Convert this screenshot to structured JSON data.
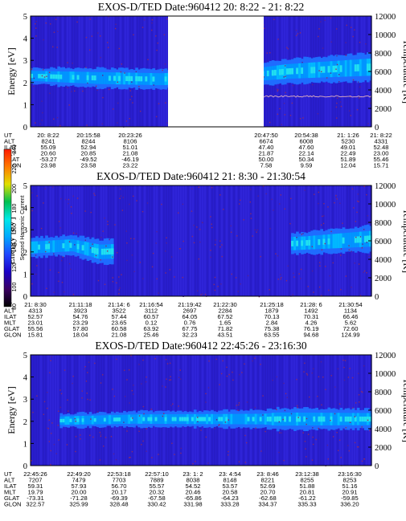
{
  "chart_data": [
    {
      "type": "heatmap",
      "title": "EXOS-D/TED   Date:960412  20: 8:22 - 21: 8:22",
      "ylabel": "Energy [eV]",
      "y2label": "Temperature [K]",
      "ylim": [
        0,
        5
      ],
      "y2lim": [
        0,
        12000
      ],
      "yticks": [
        "0",
        "1",
        "2",
        "3",
        "4",
        "5"
      ],
      "y2ticks": [
        "0",
        "2000",
        "4000",
        "6000",
        "8000",
        "10000",
        "12000"
      ],
      "data_gap": true,
      "band": [
        {
          "x": 0.0,
          "center": 2.3,
          "halfwidth": 0.38
        },
        {
          "x": 0.2,
          "center": 2.2,
          "halfwidth": 0.45
        },
        {
          "x": 0.38,
          "center": 2.15,
          "halfwidth": 0.45
        },
        {
          "x": 0.62,
          "center": 2.3,
          "halfwidth": 0.45
        },
        {
          "x": 0.75,
          "center": 2.5,
          "halfwidth": 0.55
        },
        {
          "x": 1.0,
          "center": 2.7,
          "halfwidth": 0.65
        }
      ],
      "temperature_trace_K": 3300,
      "table": {
        "labels": [
          "UT",
          "ALT",
          "ILAT",
          "MLT",
          "GLAT",
          "GLON"
        ],
        "columns": [
          [
            "20: 8:22",
            "8241",
            "55.09",
            "20.60",
            "-53.27",
            "23.98"
          ],
          [
            "20:15:58",
            "8244",
            "52.94",
            "20.85",
            "-49.52",
            "23.58"
          ],
          [
            "20:23:26",
            "8106",
            "51.01",
            "21.08",
            "-46.19",
            "23.22"
          ],
          [
            "20:47:50",
            "6674",
            "47.40",
            "21.87",
            "50.00",
            "7.58"
          ],
          [
            "20:54:38",
            "6008",
            "47.60",
            "22.14",
            "50.34",
            "9.59"
          ],
          [
            "21: 1:26",
            "5230",
            "49.01",
            "22.49",
            "51.89",
            "12.04"
          ],
          [
            "21: 8:22",
            "4331",
            "52.48",
            "23.00",
            "55.46",
            "15.71"
          ]
        ]
      }
    },
    {
      "type": "heatmap",
      "title": "EXOS-D/TED   Date:960412  21: 8:30 - 21:30:54",
      "ylabel": "Energy [eV]",
      "y2label": "Temperature [K]",
      "ylim": [
        0,
        5
      ],
      "y2lim": [
        0,
        12000
      ],
      "yticks": [
        "0",
        "1",
        "2",
        "3",
        "4",
        "5"
      ],
      "y2ticks": [
        "0",
        "2000",
        "4000",
        "6000",
        "8000",
        "10000",
        "12000"
      ],
      "band": [
        {
          "x": 0.0,
          "center": 2.2,
          "halfwidth": 0.45
        },
        {
          "x": 0.12,
          "center": 2.3,
          "halfwidth": 0.45
        },
        {
          "x": 0.2,
          "center": 2.0,
          "halfwidth": 0.55
        },
        {
          "x": 0.8,
          "center": 2.4,
          "halfwidth": 0.5
        },
        {
          "x": 1.0,
          "center": 2.6,
          "halfwidth": 0.6
        }
      ],
      "band_segments": [
        [
          0.0,
          0.24
        ],
        [
          0.76,
          1.0
        ]
      ],
      "table": {
        "labels": [
          "UT",
          "ALT",
          "ILAT",
          "MLT",
          "GLAT",
          "GLON"
        ],
        "columns": [
          [
            "21: 8:30",
            "4313",
            "52.57",
            "23.01",
            "55.56",
            "15.81"
          ],
          [
            "21:11:18",
            "3923",
            "54.76",
            "23.29",
            "57.80",
            "18.04"
          ],
          [
            "21:14: 6",
            "3522",
            "57.44",
            "23.65",
            "60.58",
            "21.08"
          ],
          [
            "21:16:54",
            "3112",
            "60.57",
            "0.12",
            "63.92",
            "25.46"
          ],
          [
            "21:19:42",
            "2697",
            "64.05",
            "0.76",
            "67.75",
            "32.23"
          ],
          [
            "21:22:30",
            "2284",
            "67.52",
            "1.65",
            "71.82",
            "43.51"
          ],
          [
            "21:25:18",
            "1879",
            "70.13",
            "2.84",
            "75.38",
            "63.55"
          ],
          [
            "21:28: 6",
            "1492",
            "70.31",
            "4.26",
            "76.19",
            "94.68"
          ],
          [
            "21:30:54",
            "1134",
            "66.46",
            "5.62",
            "72.60",
            "124.99"
          ]
        ]
      }
    },
    {
      "type": "heatmap",
      "title": "EXOS-D/TED   Date:960412  22:45:26 - 23:16:30",
      "ylabel": "Energy [eV]",
      "y2label": "Temperature [K]",
      "ylim": [
        0,
        5
      ],
      "y2lim": [
        0,
        12000
      ],
      "yticks": [
        "0",
        "1",
        "2",
        "3",
        "4",
        "5"
      ],
      "y2ticks": [
        "0",
        "2000",
        "4000",
        "6000",
        "8000",
        "10000",
        "12000"
      ],
      "band": [
        {
          "x": 0.0,
          "center": 2.0,
          "halfwidth": 0.3
        },
        {
          "x": 0.3,
          "center": 2.1,
          "halfwidth": 0.35
        },
        {
          "x": 0.68,
          "center": 2.1,
          "halfwidth": 0.4
        },
        {
          "x": 0.72,
          "center": 2.1,
          "halfwidth": 0.5
        },
        {
          "x": 1.0,
          "center": 2.1,
          "halfwidth": 0.45
        }
      ],
      "band_segments": [
        [
          0.08,
          1.0
        ]
      ],
      "table": {
        "labels": [
          "UT",
          "ALT",
          "ILAT",
          "MLT",
          "GLAT",
          "GLON"
        ],
        "columns": [
          [
            "22:45:26",
            "7207",
            "59.31",
            "19.79",
            "-73.31",
            "322.57"
          ],
          [
            "22:49:20",
            "7479",
            "57.93",
            "20.00",
            "-71.28",
            "325.99"
          ],
          [
            "22:53:18",
            "7703",
            "56.70",
            "20.17",
            "-69.39",
            "328.48"
          ],
          [
            "22:57:10",
            "7889",
            "55.57",
            "20.32",
            "-67.58",
            "330.42"
          ],
          [
            "23: 1: 2",
            "8038",
            "54.52",
            "20.46",
            "-65.86",
            "331.98"
          ],
          [
            "23: 4:54",
            "8148",
            "53.57",
            "20.58",
            "-64.23",
            "333.28"
          ],
          [
            "23: 8:46",
            "8221",
            "52.69",
            "20.70",
            "-62.68",
            "334.37"
          ],
          [
            "23:12:38",
            "8255",
            "51.88",
            "20.81",
            "-61.22",
            "335.33"
          ],
          [
            "23:16:30",
            "8253",
            "51.16",
            "20.91",
            "-59.85",
            "336.20"
          ]
        ]
      }
    }
  ],
  "colorbar": {
    "label": "Second Harmonic Current",
    "ticks": [
      "80",
      "100",
      "120",
      "140",
      "160",
      "180",
      "200",
      "220",
      "240"
    ],
    "colors": [
      "#000000",
      "#3a0062",
      "#1a00c8",
      "#1e46ff",
      "#00a8ff",
      "#00e8e8",
      "#00c050",
      "#e0e000",
      "#ff7a00",
      "#ff1a00"
    ]
  }
}
